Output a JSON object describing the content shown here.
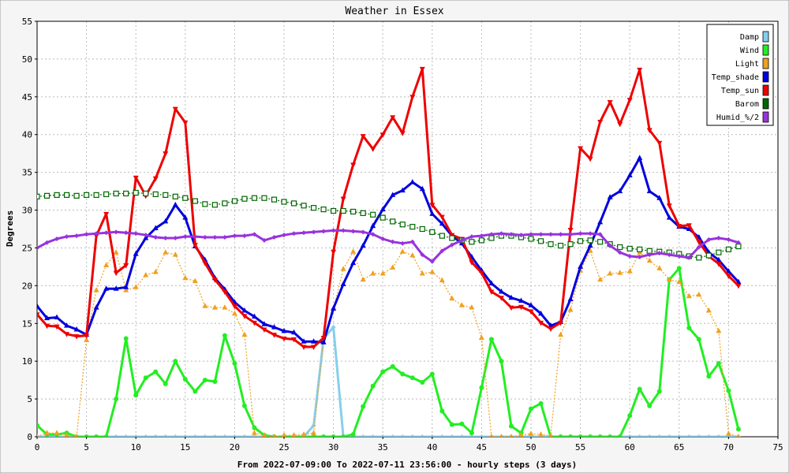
{
  "chart_data": {
    "type": "line",
    "title": "Weather in Essex",
    "ylabel": "Degrees",
    "xlabel": "From 2022-07-09:00 To 2022-07-11 23:56:00 - hourly steps (3 days)",
    "xlim": [
      0,
      75
    ],
    "ylim": [
      0,
      55
    ],
    "xticks": [
      0,
      5,
      10,
      15,
      20,
      25,
      30,
      35,
      40,
      45,
      50,
      55,
      60,
      65,
      70,
      75
    ],
    "yticks": [
      0,
      5,
      10,
      15,
      20,
      25,
      30,
      35,
      40,
      45,
      50,
      55
    ],
    "grid": true,
    "legend_position": "top-right",
    "x": [
      0,
      1,
      2,
      3,
      4,
      5,
      6,
      7,
      8,
      9,
      10,
      11,
      12,
      13,
      14,
      15,
      16,
      17,
      18,
      19,
      20,
      21,
      22,
      23,
      24,
      25,
      26,
      27,
      28,
      29,
      30,
      31,
      32,
      33,
      34,
      35,
      36,
      37,
      38,
      39,
      40,
      41,
      42,
      43,
      44,
      45,
      46,
      47,
      48,
      49,
      50,
      51,
      52,
      53,
      54,
      55,
      56,
      57,
      58,
      59,
      60,
      61,
      62,
      63,
      64,
      65,
      66,
      67,
      68,
      69,
      70,
      71
    ],
    "series": [
      {
        "name": "Damp",
        "color": "#87ceeb",
        "values": [
          0,
          0,
          0,
          0,
          0,
          0,
          0,
          0,
          0,
          0,
          0,
          0,
          0,
          0,
          0,
          0,
          0,
          0,
          0,
          0,
          0,
          0,
          0,
          0,
          0,
          0,
          0,
          0,
          1.5,
          13,
          14.5,
          0,
          0,
          0,
          0,
          0,
          0,
          0,
          0,
          0,
          0,
          0,
          0,
          0,
          0,
          0,
          0,
          0,
          0,
          0,
          0,
          0,
          0,
          0,
          0,
          0,
          0,
          0,
          0,
          0,
          0,
          0,
          0,
          0,
          0,
          0,
          0,
          0,
          0,
          0,
          0,
          0
        ]
      },
      {
        "name": "Wind",
        "color": "#22ee22",
        "values": [
          1.5,
          0.3,
          0.3,
          0.5,
          0,
          0,
          0,
          0,
          5,
          13,
          5.5,
          7.8,
          8.6,
          7,
          10,
          7.6,
          6,
          7.5,
          7.3,
          13.4,
          9.7,
          4.1,
          1.2,
          0.2,
          0,
          0,
          0,
          0,
          0,
          0,
          0,
          0,
          0.3,
          4,
          6.7,
          8.6,
          9.3,
          8.3,
          7.8,
          7.2,
          8.3,
          3.4,
          1.6,
          1.7,
          0.5,
          6.5,
          12.9,
          10,
          1.4,
          0.5,
          3.7,
          4.4,
          0,
          0,
          0,
          0,
          0,
          0,
          0,
          0,
          2.8,
          6.3,
          4.1,
          6,
          20.8,
          22.3,
          14.4,
          12.9,
          8,
          9.7,
          6.1,
          1
        ]
      },
      {
        "name": "Light",
        "color": "#f0a020",
        "values": [
          0,
          0.5,
          0.5,
          0.2,
          0,
          12.8,
          19.4,
          22.7,
          24.4,
          19.4,
          19.8,
          21.4,
          21.8,
          24.4,
          24.1,
          21,
          20.6,
          17.3,
          17.1,
          17.1,
          16.3,
          13.5,
          0.5,
          0.2,
          0,
          0.2,
          0.2,
          0.3,
          0.5,
          12.5,
          16.9,
          22.2,
          24.5,
          20.8,
          21.6,
          21.6,
          22.4,
          24.5,
          24,
          21.6,
          21.8,
          20.7,
          18.3,
          17.4,
          17.1,
          13.1,
          0,
          0,
          0,
          0.2,
          0.4,
          0.3,
          0.1,
          13.5,
          16.8,
          22,
          24.6,
          20.8,
          21.6,
          21.7,
          21.9,
          24.4,
          23.3,
          22.3,
          20.8,
          20.5,
          18.6,
          18.8,
          16.7,
          14,
          0.4,
          0
        ]
      },
      {
        "name": "Temp_shade",
        "color": "#0000dd",
        "values": [
          17.3,
          15.7,
          15.8,
          14.7,
          14.2,
          13.5,
          17.1,
          19.6,
          19.6,
          19.8,
          24.2,
          26.3,
          27.6,
          28.5,
          30.7,
          29,
          25.2,
          23.4,
          21,
          19.5,
          17.8,
          16.7,
          15.9,
          14.9,
          14.5,
          14,
          13.8,
          12.6,
          12.6,
          12.5,
          17,
          20.2,
          23,
          25.3,
          27.9,
          30.1,
          32,
          32.6,
          33.7,
          32.8,
          29.5,
          28.2,
          26.6,
          25.6,
          23.8,
          22,
          20.3,
          19.2,
          18.4,
          18,
          17.4,
          16.3,
          14.7,
          15.2,
          18.2,
          22.5,
          25.3,
          28.4,
          31.7,
          32.5,
          34.6,
          36.9,
          32.5,
          31.6,
          29,
          27.8,
          27.5,
          26.4,
          24.4,
          23.4,
          21.9,
          20.5
        ]
      },
      {
        "name": "Temp_sun",
        "color": "#ee0000",
        "values": [
          16.2,
          14.7,
          14.6,
          13.6,
          13.3,
          13.4,
          26.6,
          29.5,
          21.7,
          22.7,
          34.3,
          31.9,
          34.2,
          37.5,
          43.4,
          41.6,
          25.4,
          23,
          20.8,
          19.2,
          17.3,
          16,
          15.1,
          14.2,
          13.5,
          13,
          12.9,
          11.9,
          11.9,
          13.1,
          24.5,
          31.5,
          36,
          39.8,
          38.1,
          40,
          42.3,
          40.2,
          45,
          48.7,
          30.7,
          29.1,
          26.7,
          26.2,
          23.1,
          21.7,
          19.2,
          18.4,
          17.1,
          17.2,
          16.6,
          15.1,
          14.3,
          15.1,
          27.4,
          38.2,
          36.8,
          41.7,
          44.3,
          41.4,
          44.6,
          48.6,
          40.6,
          38.9,
          30.6,
          27.9,
          28,
          25.8,
          23.9,
          22.9,
          21.3,
          20
        ]
      },
      {
        "name": "Barom",
        "color": "#006600",
        "values": [
          31.8,
          31.9,
          32,
          32,
          31.9,
          32,
          32,
          32.1,
          32.2,
          32.2,
          32.3,
          32.2,
          32.1,
          32,
          31.8,
          31.6,
          31.2,
          30.8,
          30.7,
          30.9,
          31.2,
          31.5,
          31.6,
          31.6,
          31.4,
          31.1,
          30.9,
          30.6,
          30.3,
          30.1,
          29.9,
          29.9,
          29.8,
          29.6,
          29.4,
          29,
          28.5,
          28.1,
          27.8,
          27.5,
          27.1,
          26.6,
          26.3,
          26,
          25.8,
          26,
          26.3,
          26.6,
          26.6,
          26.4,
          26.2,
          25.9,
          25.5,
          25.3,
          25.5,
          25.9,
          26,
          25.8,
          25.5,
          25.1,
          24.9,
          24.8,
          24.6,
          24.5,
          24.4,
          24.2,
          23.9,
          23.7,
          24,
          24.4,
          24.8,
          25.2
        ]
      },
      {
        "name": "Humid_%/2",
        "color": "#9933dd",
        "values": [
          25,
          25.7,
          26.2,
          26.5,
          26.6,
          26.8,
          26.9,
          27,
          27.1,
          27,
          26.9,
          26.7,
          26.4,
          26.3,
          26.3,
          26.5,
          26.5,
          26.4,
          26.4,
          26.4,
          26.6,
          26.6,
          26.8,
          26,
          26.4,
          26.7,
          26.9,
          27,
          27.1,
          27.2,
          27.3,
          27.3,
          27.2,
          27.1,
          26.8,
          26.2,
          25.8,
          25.6,
          25.8,
          24.1,
          23.2,
          24.6,
          25.4,
          26,
          26.5,
          26.6,
          26.8,
          26.9,
          26.8,
          26.7,
          26.8,
          26.8,
          26.8,
          26.8,
          26.8,
          26.9,
          26.9,
          26.8,
          25.3,
          24.4,
          23.9,
          23.8,
          24.1,
          24.3,
          24.1,
          23.9,
          23.7,
          25.1,
          26.1,
          26.3,
          26.1,
          25.7
        ]
      }
    ]
  }
}
